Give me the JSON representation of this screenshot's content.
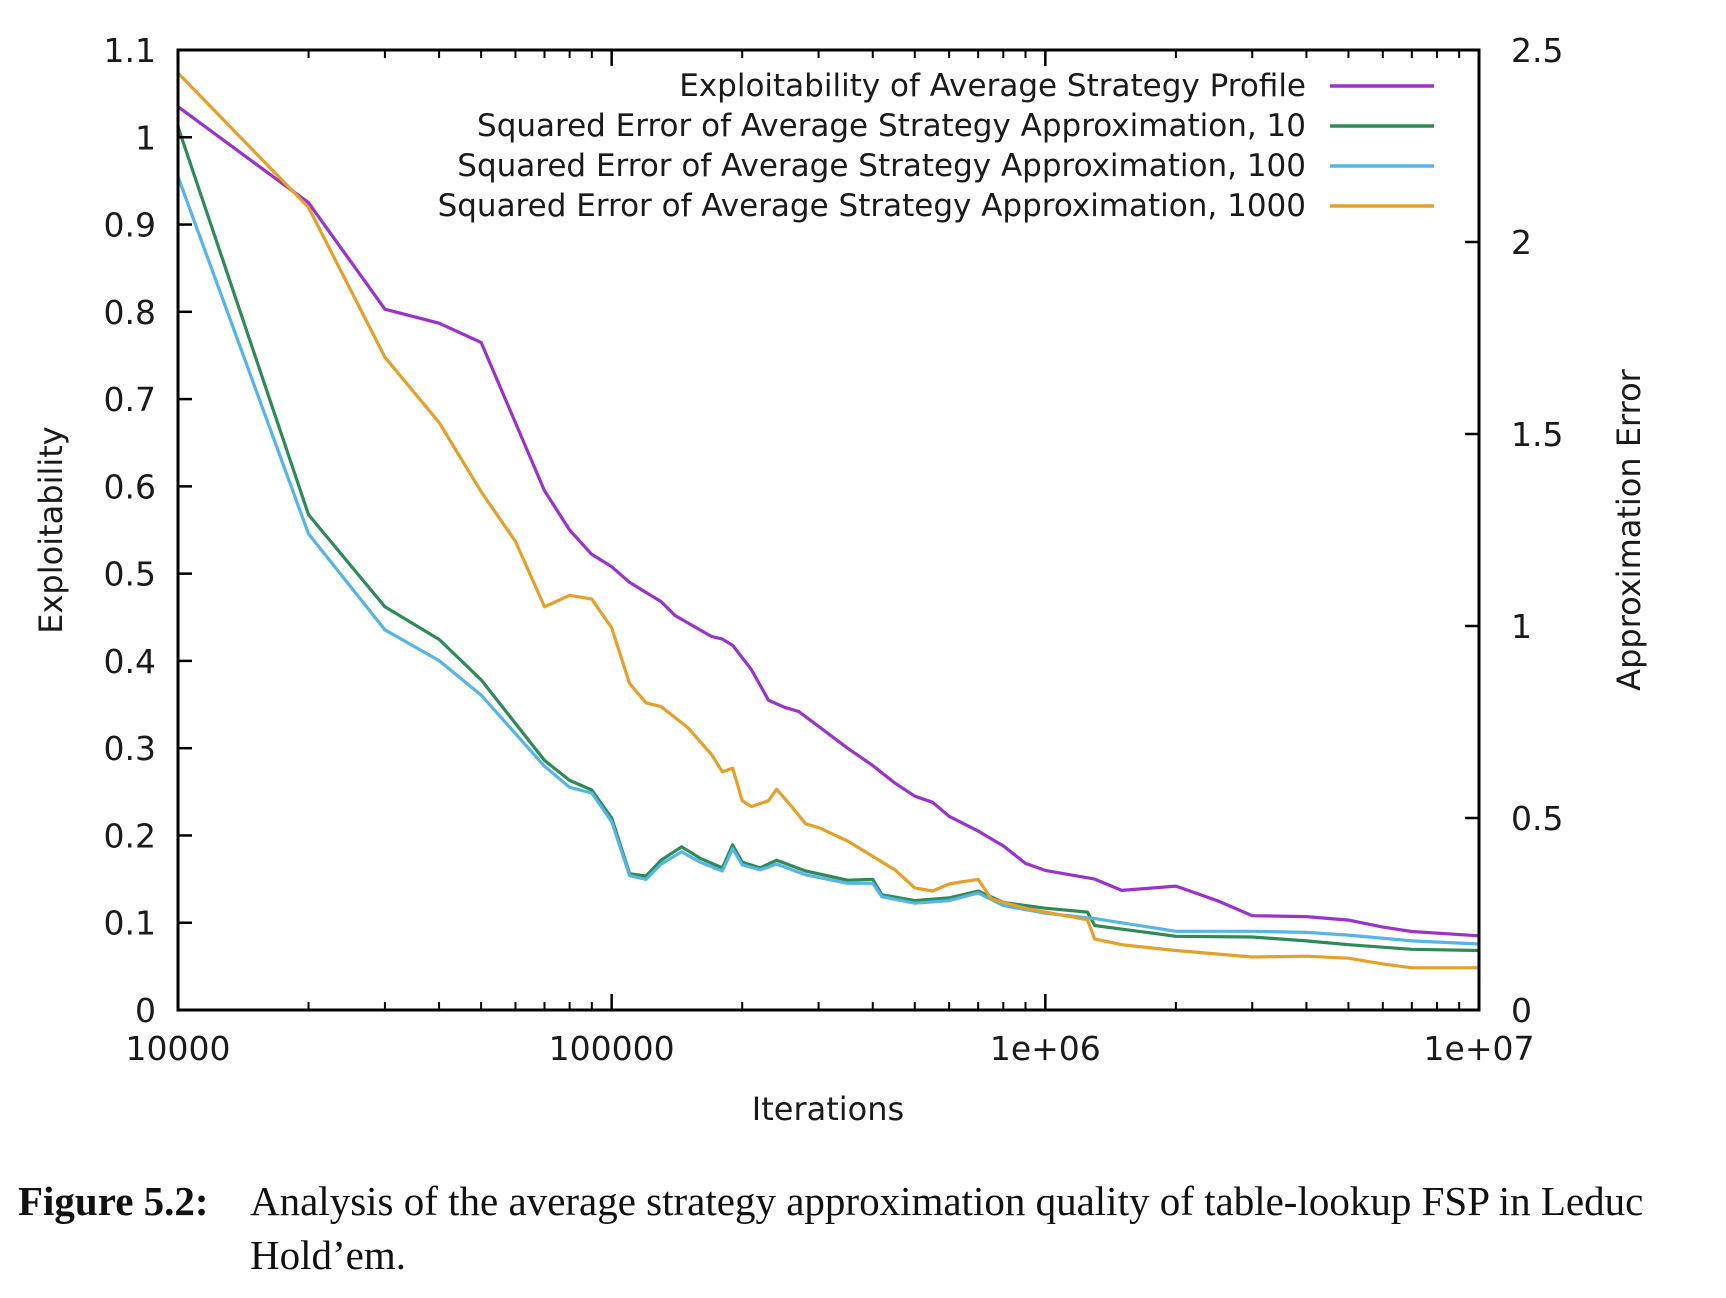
{
  "chart_data": {
    "type": "line",
    "title": "",
    "xlabel": "Iterations",
    "ylabel": "Exploitability",
    "y2label": "Approximation Error",
    "x_scale": "log",
    "xlim": [
      10000,
      10000000
    ],
    "ylim": [
      0,
      1.1
    ],
    "y2lim": [
      0,
      2.5
    ],
    "x_ticks": [
      10000,
      100000,
      1000000,
      10000000
    ],
    "x_tick_labels": [
      "10000",
      "100000",
      "1e+06",
      "1e+07"
    ],
    "y_ticks": [
      0,
      0.1,
      0.2,
      0.3,
      0.4,
      0.5,
      0.6,
      0.7,
      0.8,
      0.9,
      1,
      1.1
    ],
    "y_tick_labels": [
      "0",
      "0.1",
      "0.2",
      "0.3",
      "0.4",
      "0.5",
      "0.6",
      "0.7",
      "0.8",
      "0.9",
      "1",
      "1.1"
    ],
    "y2_ticks": [
      0,
      0.5,
      1,
      1.5,
      2,
      2.5
    ],
    "y2_tick_labels": [
      "0",
      "0.5",
      "1",
      "1.5",
      "2",
      "2.5"
    ],
    "grid": false,
    "legend_position": "top-right",
    "series": [
      {
        "name": "Exploitability of Average Strategy Profile",
        "axis": "left",
        "color": "#9a32cd",
        "points": [
          [
            10000,
            1.035
          ],
          [
            20000,
            0.925
          ],
          [
            30000,
            0.803
          ],
          [
            40000,
            0.787
          ],
          [
            50000,
            0.765
          ],
          [
            70000,
            0.595
          ],
          [
            80000,
            0.55
          ],
          [
            90000,
            0.522
          ],
          [
            100000,
            0.508
          ],
          [
            110000,
            0.49
          ],
          [
            130000,
            0.468
          ],
          [
            140000,
            0.452
          ],
          [
            170000,
            0.428
          ],
          [
            180000,
            0.425
          ],
          [
            190000,
            0.418
          ],
          [
            210000,
            0.39
          ],
          [
            230000,
            0.355
          ],
          [
            250000,
            0.347
          ],
          [
            270000,
            0.342
          ],
          [
            300000,
            0.325
          ],
          [
            350000,
            0.3
          ],
          [
            400000,
            0.28
          ],
          [
            450000,
            0.26
          ],
          [
            500000,
            0.245
          ],
          [
            550000,
            0.238
          ],
          [
            600000,
            0.222
          ],
          [
            700000,
            0.205
          ],
          [
            800000,
            0.188
          ],
          [
            900000,
            0.168
          ],
          [
            1000000,
            0.16
          ],
          [
            1300000,
            0.15
          ],
          [
            1500000,
            0.137
          ],
          [
            2000000,
            0.142
          ],
          [
            2500000,
            0.125
          ],
          [
            3000000,
            0.108
          ],
          [
            4000000,
            0.107
          ],
          [
            5000000,
            0.103
          ],
          [
            6000000,
            0.095
          ],
          [
            7000000,
            0.09
          ],
          [
            10000000,
            0.085
          ]
        ]
      },
      {
        "name": "Squared Error of Average Strategy Approximation, 10",
        "axis": "right",
        "color": "#2e8b57",
        "points": [
          [
            10000,
            2.3
          ],
          [
            20000,
            1.29
          ],
          [
            30000,
            1.05
          ],
          [
            40000,
            0.965
          ],
          [
            50000,
            0.86
          ],
          [
            70000,
            0.65
          ],
          [
            80000,
            0.598
          ],
          [
            90000,
            0.573
          ],
          [
            100000,
            0.5
          ],
          [
            110000,
            0.355
          ],
          [
            120000,
            0.349
          ],
          [
            130000,
            0.39
          ],
          [
            145000,
            0.425
          ],
          [
            160000,
            0.395
          ],
          [
            180000,
            0.37
          ],
          [
            190000,
            0.43
          ],
          [
            200000,
            0.385
          ],
          [
            220000,
            0.37
          ],
          [
            240000,
            0.39
          ],
          [
            280000,
            0.362
          ],
          [
            350000,
            0.338
          ],
          [
            400000,
            0.34
          ],
          [
            420000,
            0.3
          ],
          [
            500000,
            0.285
          ],
          [
            600000,
            0.292
          ],
          [
            700000,
            0.31
          ],
          [
            800000,
            0.28
          ],
          [
            1000000,
            0.265
          ],
          [
            1250000,
            0.255
          ],
          [
            1300000,
            0.22
          ],
          [
            2000000,
            0.192
          ],
          [
            3000000,
            0.19
          ],
          [
            4000000,
            0.18
          ],
          [
            5000000,
            0.17
          ],
          [
            7000000,
            0.158
          ],
          [
            10000000,
            0.155
          ]
        ]
      },
      {
        "name": "Squared Error of Average Strategy Approximation, 100",
        "axis": "right",
        "color": "#56b4e9",
        "points": [
          [
            10000,
            2.17
          ],
          [
            20000,
            1.24
          ],
          [
            30000,
            0.99
          ],
          [
            40000,
            0.91
          ],
          [
            50000,
            0.82
          ],
          [
            70000,
            0.635
          ],
          [
            80000,
            0.58
          ],
          [
            90000,
            0.565
          ],
          [
            100000,
            0.49
          ],
          [
            110000,
            0.35
          ],
          [
            120000,
            0.34
          ],
          [
            130000,
            0.38
          ],
          [
            145000,
            0.412
          ],
          [
            160000,
            0.385
          ],
          [
            180000,
            0.362
          ],
          [
            190000,
            0.42
          ],
          [
            200000,
            0.378
          ],
          [
            220000,
            0.365
          ],
          [
            240000,
            0.38
          ],
          [
            280000,
            0.352
          ],
          [
            350000,
            0.33
          ],
          [
            400000,
            0.33
          ],
          [
            420000,
            0.295
          ],
          [
            500000,
            0.278
          ],
          [
            600000,
            0.285
          ],
          [
            700000,
            0.305
          ],
          [
            800000,
            0.272
          ],
          [
            1000000,
            0.252
          ],
          [
            1300000,
            0.238
          ],
          [
            2000000,
            0.205
          ],
          [
            3000000,
            0.205
          ],
          [
            4000000,
            0.202
          ],
          [
            5000000,
            0.195
          ],
          [
            7000000,
            0.18
          ],
          [
            10000000,
            0.172
          ]
        ]
      },
      {
        "name": "Squared Error of Average Strategy Approximation, 1000",
        "axis": "right",
        "color": "#e69f2a",
        "points": [
          [
            10000,
            2.44
          ],
          [
            20000,
            2.09
          ],
          [
            30000,
            1.7
          ],
          [
            40000,
            1.53
          ],
          [
            50000,
            1.35
          ],
          [
            60000,
            1.22
          ],
          [
            70000,
            1.05
          ],
          [
            80000,
            1.08
          ],
          [
            90000,
            1.07
          ],
          [
            100000,
            0.995
          ],
          [
            110000,
            0.85
          ],
          [
            120000,
            0.8
          ],
          [
            130000,
            0.79
          ],
          [
            150000,
            0.735
          ],
          [
            170000,
            0.665
          ],
          [
            180000,
            0.62
          ],
          [
            190000,
            0.63
          ],
          [
            200000,
            0.545
          ],
          [
            210000,
            0.53
          ],
          [
            230000,
            0.545
          ],
          [
            240000,
            0.575
          ],
          [
            260000,
            0.53
          ],
          [
            280000,
            0.485
          ],
          [
            300000,
            0.475
          ],
          [
            350000,
            0.44
          ],
          [
            400000,
            0.4
          ],
          [
            450000,
            0.365
          ],
          [
            500000,
            0.318
          ],
          [
            550000,
            0.31
          ],
          [
            600000,
            0.328
          ],
          [
            650000,
            0.335
          ],
          [
            700000,
            0.34
          ],
          [
            750000,
            0.29
          ],
          [
            800000,
            0.28
          ],
          [
            900000,
            0.265
          ],
          [
            1000000,
            0.255
          ],
          [
            1250000,
            0.235
          ],
          [
            1300000,
            0.185
          ],
          [
            1500000,
            0.17
          ],
          [
            2000000,
            0.155
          ],
          [
            3000000,
            0.138
          ],
          [
            4000000,
            0.14
          ],
          [
            5000000,
            0.135
          ],
          [
            6000000,
            0.12
          ],
          [
            7000000,
            0.11
          ],
          [
            10000000,
            0.11
          ]
        ]
      }
    ]
  },
  "caption": {
    "label": "Figure 5.2:",
    "text": "Analysis of the average strategy approximation quality of table-lookup FSP in Leduc Hold’em."
  }
}
